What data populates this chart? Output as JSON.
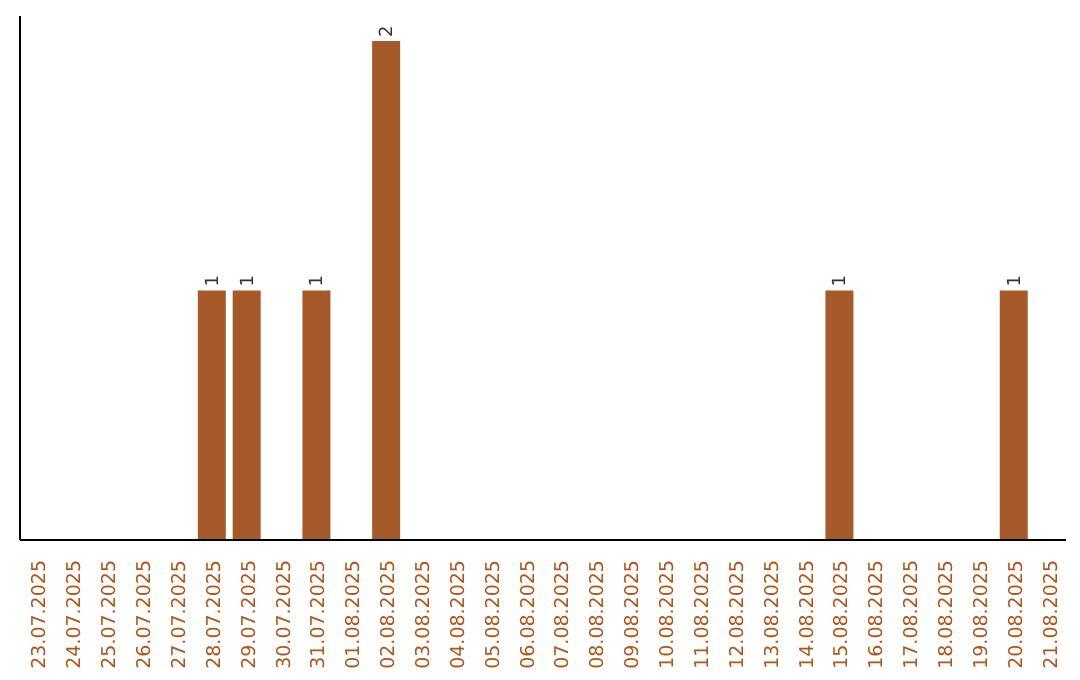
{
  "chart_data": {
    "type": "bar",
    "categories": [
      "23.07.2025",
      "24.07.2025",
      "25.07.2025",
      "26.07.2025",
      "27.07.2025",
      "28.07.2025",
      "29.07.2025",
      "30.07.2025",
      "31.07.2025",
      "01.08.2025",
      "02.08.2025",
      "03.08.2025",
      "04.08.2025",
      "05.08.2025",
      "06.08.2025",
      "07.08.2025",
      "08.08.2025",
      "09.08.2025",
      "10.08.2025",
      "11.08.2025",
      "12.08.2025",
      "13.08.2025",
      "14.08.2025",
      "15.08.2025",
      "16.08.2025",
      "17.08.2025",
      "18.08.2025",
      "19.08.2025",
      "20.08.2025",
      "21.08.2025"
    ],
    "values": [
      0,
      0,
      0,
      0,
      0,
      1,
      1,
      0,
      1,
      0,
      2,
      0,
      0,
      0,
      0,
      0,
      0,
      0,
      0,
      0,
      0,
      0,
      0,
      1,
      0,
      0,
      0,
      0,
      1,
      0
    ],
    "value_labels": [
      null,
      null,
      null,
      null,
      null,
      "1",
      "1",
      null,
      "1",
      null,
      "2",
      null,
      null,
      null,
      null,
      null,
      null,
      null,
      null,
      null,
      null,
      null,
      null,
      "1",
      null,
      null,
      null,
      null,
      "1",
      null
    ],
    "color": "#a65a2a",
    "ylim": [
      0,
      2.1
    ]
  }
}
